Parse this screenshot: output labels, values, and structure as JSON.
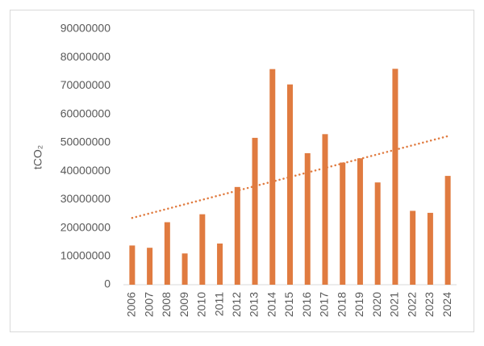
{
  "chart_data": {
    "type": "bar",
    "y_label": "tCO₂",
    "categories": [
      "2006",
      "2007",
      "2008",
      "2009",
      "2010",
      "2011",
      "2012",
      "2013",
      "2014",
      "2015",
      "2016",
      "2017",
      "2018",
      "2019",
      "2020",
      "2021",
      "2022",
      "2023",
      "2024"
    ],
    "values": [
      13800000,
      13000000,
      22000000,
      11000000,
      24800000,
      14500000,
      34400000,
      51700000,
      75900000,
      70500000,
      46300000,
      53000000,
      43000000,
      44500000,
      36000000,
      76000000,
      26000000,
      25300000,
      38300000
    ],
    "color": "#e07b40",
    "trendline": true,
    "ylim": [
      0,
      90000000
    ],
    "yticks": [
      0,
      10000000,
      20000000,
      30000000,
      40000000,
      50000000,
      60000000,
      70000000,
      80000000,
      90000000
    ],
    "grid": false
  }
}
